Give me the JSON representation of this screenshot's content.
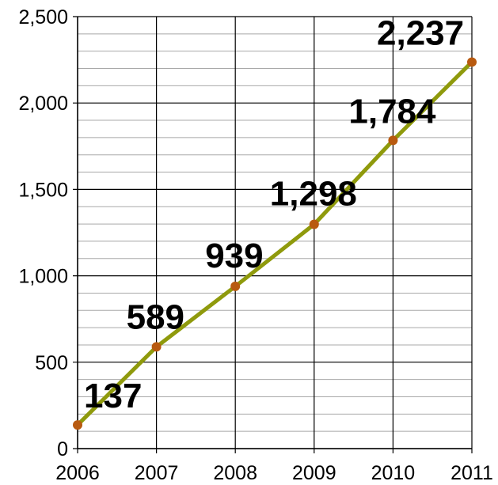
{
  "chart_data": {
    "type": "line",
    "x": [
      2006,
      2007,
      2008,
      2009,
      2010,
      2011
    ],
    "x_tick_labels": [
      "2006",
      "2007",
      "2008",
      "2009",
      "2010",
      "2011"
    ],
    "series": [
      {
        "values": [
          137,
          589,
          939,
          1298,
          1784,
          2237
        ]
      }
    ],
    "data_labels": [
      "137",
      "589",
      "939",
      "1,298",
      "1,784",
      "2,237"
    ],
    "y_tick_values": [
      0,
      500,
      1000,
      1500,
      2000,
      2500
    ],
    "y_tick_labels": [
      "0",
      "500",
      "1,000",
      "1,500",
      "2,000",
      "2,500"
    ],
    "ylim": [
      0,
      2500
    ],
    "xlim": [
      2006,
      2011
    ],
    "minor_grid_step": 100,
    "grid": true,
    "legend": "none",
    "title": "",
    "xlabel": "",
    "ylabel": "",
    "colors": {
      "line": "#8f9a0c",
      "marker": "#b85a10",
      "major_grid": "#000000",
      "minor_grid": "#a8a8a8"
    }
  }
}
